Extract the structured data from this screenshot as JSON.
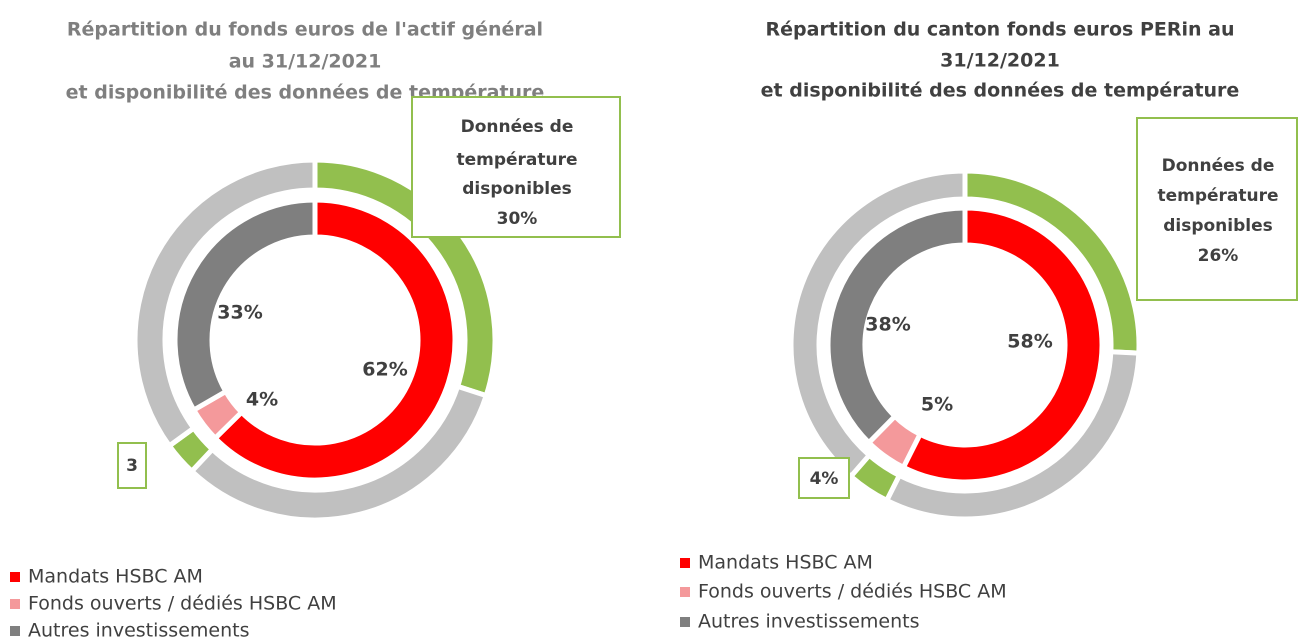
{
  "chart_data": [
    {
      "type": "doughnut",
      "title": [
        "Répartition du fonds euros de l'actif général",
        "au 31/12/2021",
        "et disponibilité  des données de température"
      ],
      "categories": [
        "Mandats HSBC AM",
        "Fonds ouverts / dédiés HSBC AM",
        "Autres investissements"
      ],
      "colors": [
        "#ff0000",
        "#f4999b",
        "#7f7f7f"
      ],
      "values": [
        62,
        4,
        33
      ],
      "value_labels": [
        "62%",
        "4%",
        "33%"
      ],
      "outer_ring": {
        "values": [
          30,
          32,
          3,
          35
        ],
        "colors": [
          "#92bf4e",
          "#c0c0c0",
          "#92bf4e",
          "#c0c0c0"
        ],
        "value_labels": [
          "30%",
          null,
          "3",
          null
        ]
      },
      "annotation": [
        "Données de",
        "température",
        "disponibles"
      ]
    },
    {
      "type": "doughnut",
      "title": [
        "Répartition du canton fonds euros PERin au",
        "31/12/2021",
        "et disponibilité  des données de température"
      ],
      "categories": [
        "Mandats HSBC AM",
        "Fonds ouverts / dédiés HSBC AM",
        "Autres investissements"
      ],
      "colors": [
        "#ff0000",
        "#f4999b",
        "#7f7f7f"
      ],
      "values": [
        58,
        5,
        38
      ],
      "value_labels": [
        "58%",
        "5%",
        "38%"
      ],
      "outer_ring": {
        "values": [
          26,
          32,
          4,
          39
        ],
        "colors": [
          "#92bf4e",
          "#c0c0c0",
          "#92bf4e",
          "#c0c0c0"
        ],
        "value_labels": [
          "26%",
          null,
          "4%",
          null
        ]
      },
      "annotation": [
        "Données de",
        "température",
        "disponibles"
      ]
    }
  ]
}
